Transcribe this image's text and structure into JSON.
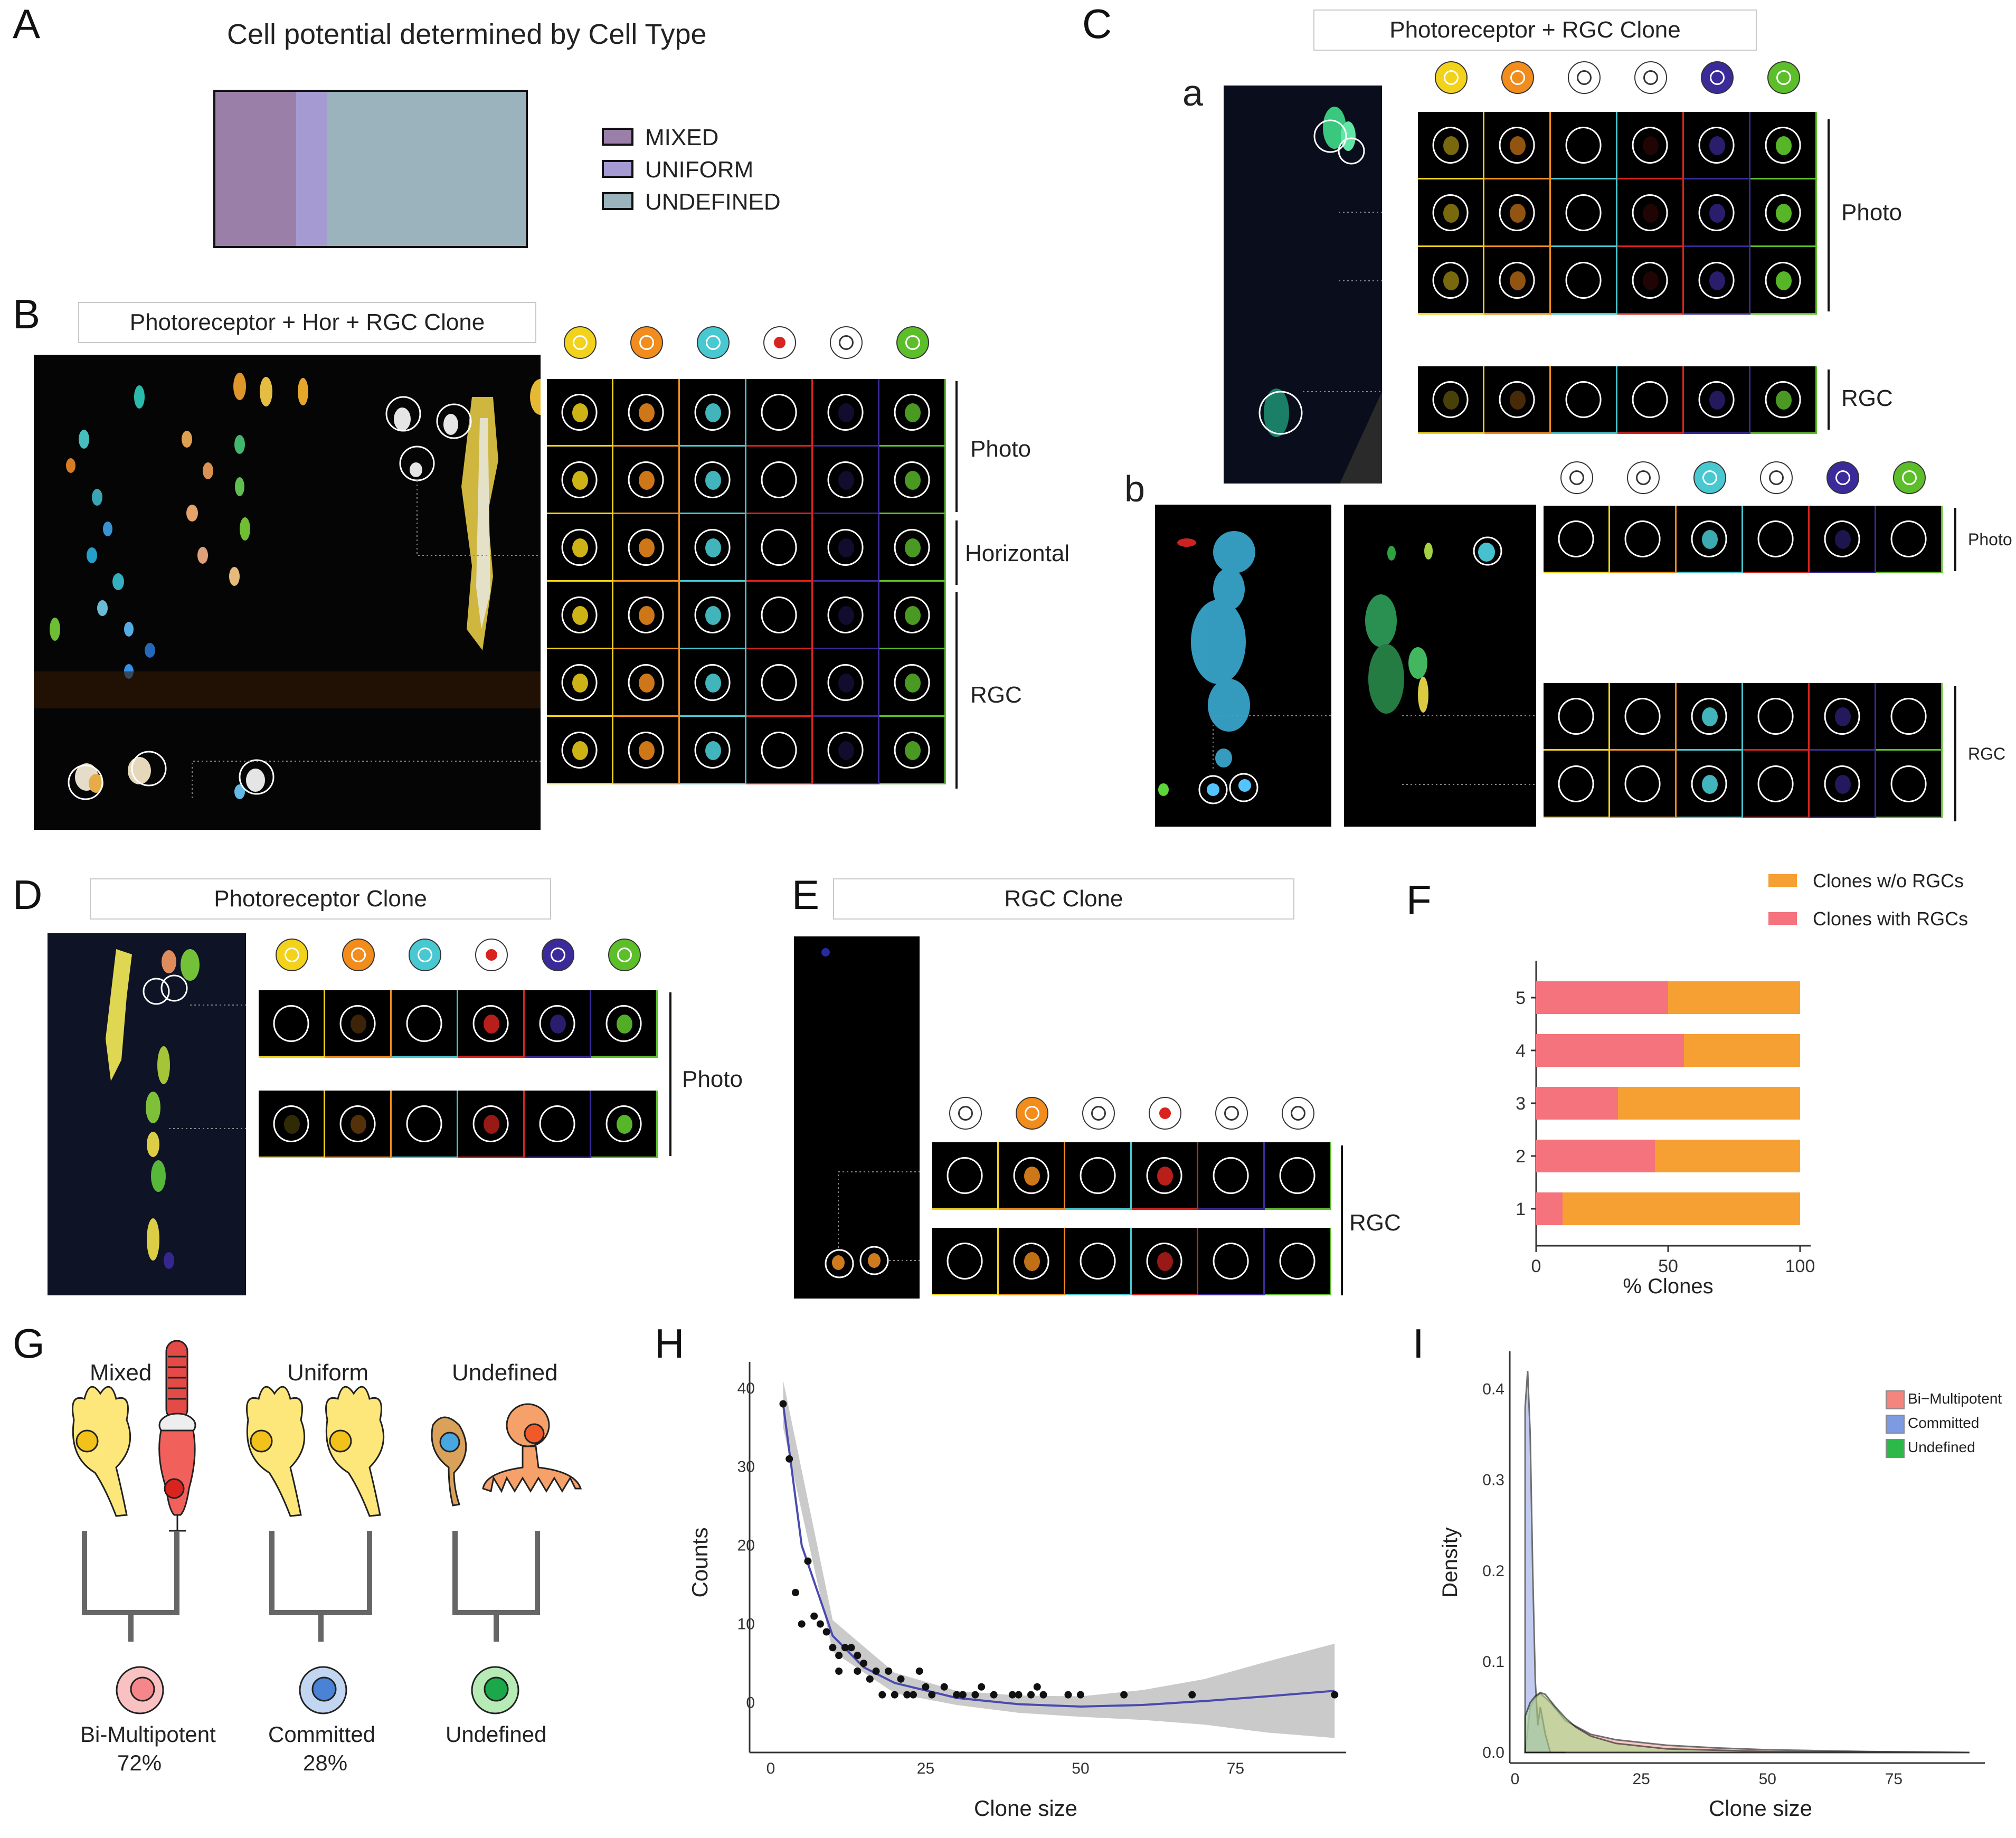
{
  "panels": {
    "A": {
      "label": "A",
      "title": "Cell potential determined by Cell Type",
      "legend": [
        {
          "name": "MIXED",
          "color": "#9a7fa8"
        },
        {
          "name": "UNIFORM",
          "color": "#a59bd2"
        },
        {
          "name": "UNDEFINED",
          "color": "#9ab3bd"
        }
      ],
      "proportions": [
        0.26,
        0.1,
        0.64
      ]
    },
    "B": {
      "label": "B",
      "title": "Photoreceptor + Hor + RGC Clone",
      "groups": [
        "Photo",
        "Horizontal",
        "RGC"
      ]
    },
    "C": {
      "label": "C",
      "title": "Photoreceptor + RGC Clone",
      "sub_a": "a",
      "sub_b": "b",
      "groups_a": [
        "Photo",
        "RGC"
      ],
      "groups_b": [
        "Photo",
        "RGC"
      ]
    },
    "D": {
      "label": "D",
      "title": "Photoreceptor Clone",
      "groups": [
        "Photo"
      ]
    },
    "E": {
      "label": "E",
      "title": "RGC Clone",
      "groups": [
        "RGC"
      ]
    },
    "F": {
      "label": "F",
      "legend": [
        "Clones w/o RGCs",
        "Clones with RGCs"
      ],
      "xlabel": "% Clones",
      "xticks": [
        "0",
        "50",
        "100"
      ],
      "yticks": [
        "1",
        "2",
        "3",
        "4",
        "5"
      ]
    },
    "G": {
      "label": "G",
      "types": [
        "Mixed",
        "Uniform",
        "Undefined"
      ],
      "outcomes": [
        {
          "name": "Bi-Multipotent",
          "pct": "72%"
        },
        {
          "name": "Committed",
          "pct": "28%"
        },
        {
          "name": "Undefined",
          "pct": ""
        }
      ]
    },
    "H": {
      "label": "H",
      "xlabel": "Clone size",
      "ylabel": "Counts",
      "xticks": [
        "0",
        "25",
        "50",
        "75"
      ],
      "yticks": [
        "0",
        "10",
        "20",
        "30",
        "40"
      ]
    },
    "I": {
      "label": "I",
      "xlabel": "Clone size",
      "ylabel": "Density",
      "xticks": [
        "0",
        "25",
        "50",
        "75"
      ],
      "yticks": [
        "0.0",
        "0.1",
        "0.2",
        "0.3",
        "0.4"
      ],
      "legend": [
        "Bi−Multipotent",
        "Committed",
        "Undefined"
      ]
    }
  },
  "colors": {
    "yellow": "#f2d21b",
    "orange": "#f28c1c",
    "cyan": "#48c8d0",
    "red": "#d8231e",
    "purple": "#3a2a9a",
    "green": "#5cbf2a",
    "pink": "#f4737c",
    "orange_bar": "#f6a033",
    "fill_pink": "#f4a6a0",
    "fill_blue": "#9aa9e6",
    "fill_green": "#a8d98a"
  },
  "chart_data": [
    {
      "type": "bar",
      "orientation": "horizontal",
      "stacked": true,
      "title": "",
      "xlabel": "% Clones",
      "ylabel": "",
      "categories": [
        "1",
        "2",
        "3",
        "4",
        "5"
      ],
      "series": [
        {
          "name": "Clones with RGCs",
          "values": [
            10,
            45,
            31,
            56,
            50
          ]
        },
        {
          "name": "Clones w/o RGCs",
          "values": [
            90,
            55,
            69,
            44,
            50
          ]
        }
      ],
      "xlim": [
        0,
        100
      ],
      "legend": "top-right"
    },
    {
      "type": "scatter",
      "title": "",
      "xlabel": "Clone size",
      "ylabel": "Counts",
      "xlim": [
        0,
        92
      ],
      "ylim": [
        -5,
        42
      ],
      "points": [
        [
          2,
          38
        ],
        [
          3,
          31
        ],
        [
          4,
          14
        ],
        [
          5,
          10
        ],
        [
          6,
          18
        ],
        [
          7,
          11
        ],
        [
          8,
          10
        ],
        [
          9,
          9
        ],
        [
          10,
          7
        ],
        [
          11,
          4
        ],
        [
          11,
          6
        ],
        [
          12,
          7
        ],
        [
          13,
          7
        ],
        [
          14,
          4
        ],
        [
          14,
          6
        ],
        [
          15,
          5
        ],
        [
          16,
          3
        ],
        [
          17,
          4
        ],
        [
          18,
          1
        ],
        [
          19,
          4
        ],
        [
          20,
          1
        ],
        [
          21,
          3
        ],
        [
          22,
          1
        ],
        [
          23,
          1
        ],
        [
          24,
          4
        ],
        [
          25,
          2
        ],
        [
          26,
          1
        ],
        [
          28,
          2
        ],
        [
          30,
          1
        ],
        [
          31,
          1
        ],
        [
          33,
          1
        ],
        [
          34,
          2
        ],
        [
          36,
          1
        ],
        [
          39,
          1
        ],
        [
          40,
          1
        ],
        [
          42,
          1
        ],
        [
          43,
          2
        ],
        [
          44,
          1
        ],
        [
          48,
          1
        ],
        [
          50,
          1
        ],
        [
          57,
          1
        ],
        [
          68,
          1
        ],
        [
          91,
          1
        ]
      ],
      "smooth": {
        "x": [
          2,
          5,
          10,
          15,
          20,
          30,
          40,
          50,
          60,
          70,
          80,
          91
        ],
        "y": [
          38,
          20,
          8.5,
          4.5,
          2.5,
          0.6,
          -0.2,
          -0.5,
          -0.3,
          0.2,
          0.8,
          1.5
        ]
      },
      "band": {
        "x": [
          2,
          10,
          20,
          30,
          40,
          50,
          60,
          70,
          80,
          91
        ],
        "lo": [
          35,
          6.5,
          1.2,
          -0.3,
          -1.3,
          -1.8,
          -2.2,
          -2.8,
          -3.8,
          -4.5
        ],
        "hi": [
          41,
          10.5,
          3.8,
          1.5,
          0.9,
          0.8,
          1.6,
          3.0,
          5.2,
          7.5
        ]
      },
      "line_color": "#4a4ab0"
    },
    {
      "type": "area",
      "title": "",
      "xlabel": "Clone size",
      "ylabel": "Density",
      "xlim": [
        0,
        92
      ],
      "ylim": [
        0,
        0.43
      ],
      "series": [
        {
          "name": "Bi−Multipotent",
          "x": [
            2,
            3,
            4,
            5,
            7,
            10,
            15,
            20,
            30,
            40,
            50,
            70,
            90
          ],
          "y": [
            0.0,
            0.05,
            0.06,
            0.065,
            0.055,
            0.035,
            0.02,
            0.014,
            0.008,
            0.005,
            0.003,
            0.001,
            0.0
          ]
        },
        {
          "name": "Committed",
          "x": [
            2,
            2.5,
            3,
            3.5,
            4,
            4.5,
            5,
            6,
            7,
            8,
            10
          ],
          "y": [
            0.38,
            0.42,
            0.35,
            0.2,
            0.08,
            0.03,
            0.05,
            0.02,
            0.0,
            0.0,
            0.0
          ]
        },
        {
          "name": "Undefined",
          "x": [
            2,
            3,
            4,
            5,
            6,
            8,
            10,
            12,
            15,
            20,
            30,
            50,
            90
          ],
          "y": [
            0.04,
            0.055,
            0.062,
            0.066,
            0.064,
            0.05,
            0.038,
            0.028,
            0.018,
            0.01,
            0.004,
            0.001,
            0.0
          ]
        }
      ],
      "legend": "top-right"
    }
  ]
}
